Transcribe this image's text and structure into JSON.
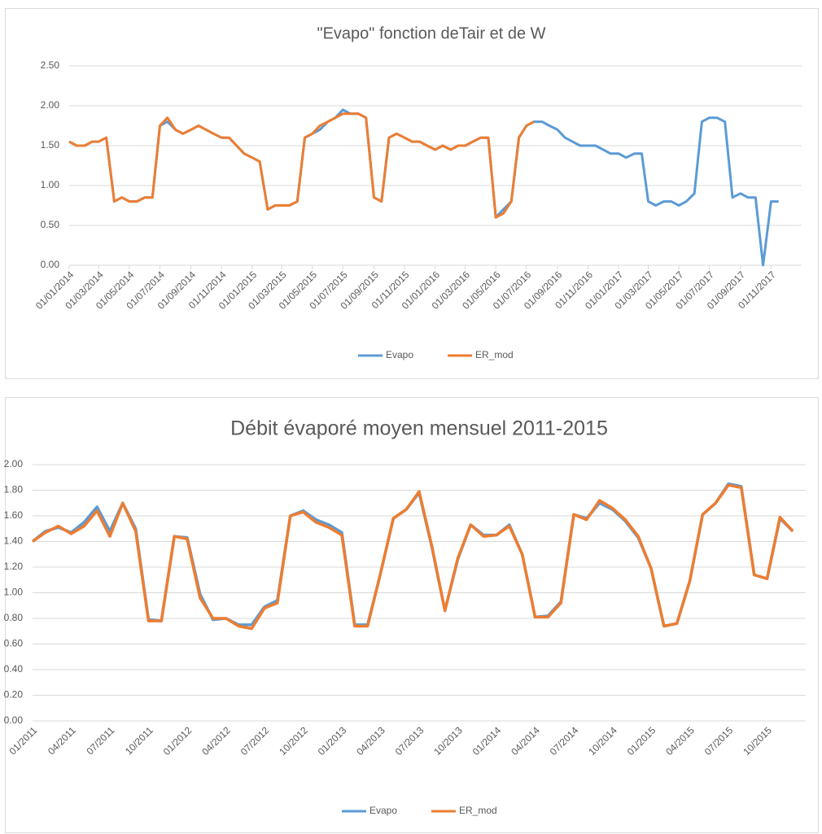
{
  "chart_data": [
    {
      "type": "line",
      "title": "\"Evapo\" fonction deTair et de W",
      "x": [
        "01/01/2014",
        "16/01/2014",
        "01/02/2014",
        "16/02/2014",
        "01/03/2014",
        "16/03/2014",
        "01/04/2014",
        "16/04/2014",
        "01/05/2014",
        "16/05/2014",
        "01/06/2014",
        "16/06/2014",
        "01/07/2014",
        "16/07/2014",
        "01/08/2014",
        "16/08/2014",
        "01/09/2014",
        "16/09/2014",
        "01/10/2014",
        "16/10/2014",
        "01/11/2014",
        "16/11/2014",
        "01/12/2014",
        "16/12/2014",
        "01/01/2015",
        "16/01/2015",
        "01/02/2015",
        "16/02/2015",
        "01/03/2015",
        "16/03/2015",
        "01/04/2015",
        "16/04/2015",
        "01/05/2015",
        "16/05/2015",
        "01/06/2015",
        "16/06/2015",
        "01/07/2015",
        "16/07/2015",
        "01/08/2015",
        "16/08/2015",
        "01/09/2015",
        "16/09/2015",
        "01/10/2015",
        "16/10/2015",
        "01/11/2015",
        "16/11/2015",
        "01/12/2015",
        "16/12/2015",
        "01/01/2016",
        "16/01/2016",
        "01/02/2016",
        "16/02/2016",
        "01/03/2016",
        "16/03/2016",
        "01/04/2016",
        "16/04/2016",
        "01/05/2016",
        "16/05/2016",
        "01/06/2016",
        "16/06/2016",
        "01/07/2016",
        "16/07/2016",
        "01/08/2016",
        "16/08/2016",
        "01/09/2016",
        "16/09/2016",
        "01/10/2016",
        "16/10/2016",
        "01/11/2016",
        "16/11/2016",
        "01/12/2016",
        "16/12/2016",
        "01/01/2017",
        "16/01/2017",
        "01/02/2017",
        "16/02/2017",
        "01/03/2017",
        "16/03/2017",
        "01/04/2017",
        "16/04/2017",
        "01/05/2017",
        "16/05/2017",
        "01/06/2017",
        "16/06/2017",
        "01/07/2017",
        "16/07/2017",
        "01/08/2017",
        "16/08/2017",
        "01/09/2017",
        "16/09/2017",
        "01/10/2017",
        "16/10/2017",
        "01/11/2017",
        "16/11/2017"
      ],
      "series": [
        {
          "name": "Evapo",
          "color": "#5b9bd5",
          "values": [
            1.55,
            1.5,
            1.5,
            1.55,
            1.55,
            1.6,
            0.8,
            0.85,
            0.8,
            0.8,
            0.85,
            0.85,
            1.75,
            1.8,
            1.7,
            1.65,
            1.7,
            1.75,
            1.7,
            1.65,
            1.6,
            1.6,
            1.5,
            1.4,
            1.35,
            1.3,
            0.7,
            0.75,
            0.75,
            0.75,
            0.8,
            1.6,
            1.65,
            1.7,
            1.8,
            1.85,
            1.95,
            1.9,
            1.9,
            1.85,
            0.85,
            0.8,
            1.6,
            1.65,
            1.6,
            1.55,
            1.55,
            1.5,
            1.45,
            1.5,
            1.45,
            1.5,
            1.5,
            1.55,
            1.6,
            1.6,
            0.6,
            0.7,
            0.8,
            1.6,
            1.75,
            1.8,
            1.8,
            1.75,
            1.7,
            1.6,
            1.55,
            1.5,
            1.5,
            1.5,
            1.45,
            1.4,
            1.4,
            1.35,
            1.4,
            1.4,
            0.8,
            0.75,
            0.8,
            0.8,
            0.75,
            0.8,
            0.9,
            1.8,
            1.85,
            1.85,
            1.8,
            0.85,
            0.9,
            0.85,
            0.85,
            0,
            0.8,
            0.8
          ]
        },
        {
          "name": "ER_mod",
          "color": "#ed7d31",
          "values": [
            1.55,
            1.5,
            1.5,
            1.55,
            1.55,
            1.6,
            0.8,
            0.85,
            0.8,
            0.8,
            0.85,
            0.85,
            1.75,
            1.85,
            1.7,
            1.65,
            1.7,
            1.75,
            1.7,
            1.65,
            1.6,
            1.6,
            1.5,
            1.4,
            1.35,
            1.3,
            0.7,
            0.75,
            0.75,
            0.75,
            0.8,
            1.6,
            1.65,
            1.75,
            1.8,
            1.85,
            1.9,
            1.9,
            1.9,
            1.85,
            0.85,
            0.8,
            1.6,
            1.65,
            1.6,
            1.55,
            1.55,
            1.5,
            1.45,
            1.5,
            1.45,
            1.5,
            1.5,
            1.55,
            1.6,
            1.6,
            0.6,
            0.65,
            0.8,
            1.6,
            1.75,
            1.8,
            null,
            null,
            null,
            null,
            null,
            null,
            null,
            null,
            null,
            null,
            null,
            null,
            null,
            null,
            null,
            null,
            null,
            null,
            null,
            null,
            null,
            null,
            null,
            null,
            null,
            null,
            null,
            null,
            null,
            null,
            null,
            null
          ]
        }
      ],
      "xlim": [
        "01/01/2014",
        "01/01/2018"
      ],
      "xticks": [
        "01/01/2014",
        "01/03/2014",
        "01/05/2014",
        "01/07/2014",
        "01/09/2014",
        "01/11/2014",
        "01/01/2015",
        "01/03/2015",
        "01/05/2015",
        "01/07/2015",
        "01/09/2015",
        "01/11/2015",
        "01/01/2016",
        "01/03/2016",
        "01/05/2016",
        "01/07/2016",
        "01/09/2016",
        "01/11/2016",
        "01/01/2017",
        "01/03/2017",
        "01/05/2017",
        "01/07/2017",
        "01/09/2017",
        "01/11/2017"
      ],
      "ylim": [
        0,
        2.5
      ],
      "yticks": [
        {
          "value": 0,
          "label": "0.00"
        },
        {
          "value": 0.5,
          "label": "0.50"
        },
        {
          "value": 1,
          "label": "1.00"
        },
        {
          "value": 1.5,
          "label": "1.50"
        },
        {
          "value": 2,
          "label": "2.00"
        },
        {
          "value": 2.5,
          "label": "2.50"
        }
      ],
      "grid": true,
      "legend": "bottom"
    },
    {
      "type": "line",
      "title": "Débit évaporé moyen mensuel 2011-2015",
      "categories": [
        "01/2011",
        null,
        null,
        "04/2011",
        null,
        null,
        "07/2011",
        null,
        null,
        "10/2011",
        null,
        null,
        "01/2012",
        null,
        null,
        "04/2012",
        null,
        null,
        "07/2012",
        null,
        null,
        "10/2012",
        null,
        null,
        "01/2013",
        null,
        null,
        "04/2013",
        null,
        null,
        "07/2013",
        null,
        null,
        "10/2013",
        null,
        null,
        "01/2014",
        null,
        null,
        "04/2014",
        null,
        null,
        "07/2014",
        null,
        null,
        "10/2014",
        null,
        null,
        "01/2015",
        null,
        null,
        "04/2015",
        null,
        null,
        "07/2015",
        null,
        null,
        "10/2015",
        null,
        null
      ],
      "series": [
        {
          "name": "Evapo",
          "color": "#5b9bd5",
          "values": [
            1.4,
            1.48,
            1.51,
            1.47,
            1.55,
            1.67,
            1.48,
            1.7,
            1.5,
            0.79,
            0.78,
            1.44,
            1.43,
            0.99,
            0.79,
            0.8,
            0.75,
            0.75,
            0.89,
            0.94,
            1.6,
            1.64,
            1.57,
            1.53,
            1.47,
            0.75,
            0.75,
            1.15,
            1.58,
            1.65,
            1.78,
            1.35,
            0.86,
            1.26,
            1.53,
            1.45,
            1.45,
            1.53,
            1.3,
            0.81,
            0.82,
            0.93,
            1.61,
            1.58,
            1.7,
            1.65,
            1.56,
            1.43,
            1.19,
            0.74,
            0.76,
            1.09,
            1.61,
            1.7,
            1.85,
            1.83,
            1.14,
            1.11,
            1.58,
            1.48
          ]
        },
        {
          "name": "ER_mod",
          "color": "#ed7d31",
          "values": [
            1.4,
            1.47,
            1.52,
            1.46,
            1.52,
            1.64,
            1.44,
            1.7,
            1.48,
            0.78,
            0.78,
            1.44,
            1.42,
            0.96,
            0.8,
            0.8,
            0.74,
            0.72,
            0.88,
            0.92,
            1.6,
            1.63,
            1.55,
            1.51,
            1.45,
            0.74,
            0.74,
            1.15,
            1.58,
            1.65,
            1.79,
            1.36,
            0.86,
            1.27,
            1.53,
            1.44,
            1.45,
            1.52,
            1.3,
            0.81,
            0.81,
            0.92,
            1.61,
            1.57,
            1.72,
            1.66,
            1.57,
            1.44,
            1.19,
            0.74,
            0.76,
            1.09,
            1.61,
            1.7,
            1.84,
            1.82,
            1.14,
            1.11,
            1.59,
            1.48
          ]
        }
      ],
      "ylim": [
        0,
        2
      ],
      "yticks": [
        {
          "value": 0,
          "label": "0.00"
        },
        {
          "value": 0.2,
          "label": "0.20"
        },
        {
          "value": 0.4,
          "label": "0.40"
        },
        {
          "value": 0.6,
          "label": "0.60"
        },
        {
          "value": 0.8,
          "label": "0.80"
        },
        {
          "value": 1,
          "label": "1.00"
        },
        {
          "value": 1.2,
          "label": "1.20"
        },
        {
          "value": 1.4,
          "label": "1.40"
        },
        {
          "value": 1.6,
          "label": "1.60"
        },
        {
          "value": 1.8,
          "label": "1.80"
        },
        {
          "value": 2,
          "label": "2.00"
        }
      ],
      "grid": true,
      "legend": "bottom"
    }
  ]
}
